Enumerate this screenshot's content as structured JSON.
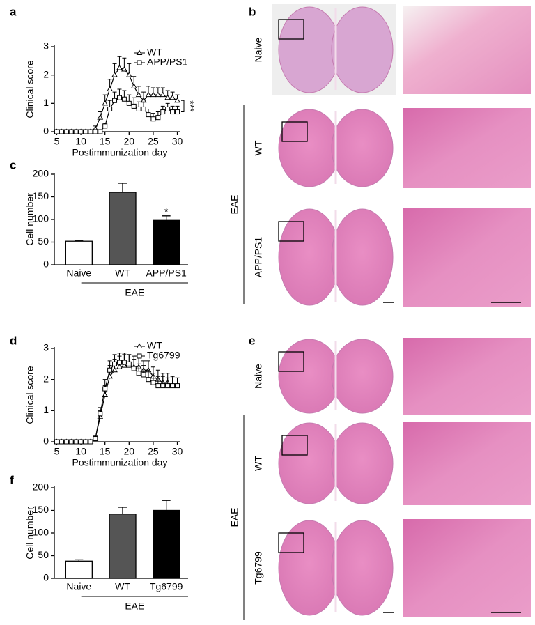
{
  "chart_data": [
    {
      "type": "line",
      "panel_label": "a",
      "ylabel": "Clinical score",
      "xlabel": "Postimmunization day",
      "x": [
        5,
        6,
        7,
        8,
        9,
        10,
        11,
        12,
        13,
        14,
        15,
        16,
        17,
        18,
        19,
        20,
        21,
        22,
        23,
        24,
        25,
        26,
        27,
        28,
        29,
        30
      ],
      "xlim": [
        4.5,
        30.5
      ],
      "xticks": [
        5,
        10,
        15,
        20,
        25,
        30
      ],
      "ylim": [
        0,
        3
      ],
      "yticks": [
        0,
        1,
        2,
        3
      ],
      "series": [
        {
          "name": "WT",
          "color": "#000000",
          "marker": "triangle",
          "values": [
            0,
            0,
            0,
            0,
            0,
            0,
            0,
            0,
            0.1,
            0.5,
            1.0,
            1.5,
            2.0,
            2.25,
            2.2,
            2.0,
            1.6,
            1.3,
            1.1,
            1.3,
            1.3,
            1.3,
            1.3,
            1.2,
            1.2,
            1.1
          ],
          "errors": [
            0,
            0,
            0,
            0,
            0,
            0,
            0,
            0,
            0.1,
            0.2,
            0.3,
            0.35,
            0.4,
            0.4,
            0.4,
            0.4,
            0.35,
            0.3,
            0.3,
            0.3,
            0.25,
            0.25,
            0.25,
            0.25,
            0.2,
            0.2
          ]
        },
        {
          "name": "APP/PS1",
          "color": "#000000",
          "marker": "square",
          "values": [
            0,
            0,
            0,
            0,
            0,
            0,
            0,
            0,
            0,
            0,
            0.2,
            0.8,
            1.1,
            1.2,
            1.15,
            1.0,
            0.9,
            0.8,
            0.8,
            0.6,
            0.45,
            0.5,
            0.7,
            0.8,
            0.7,
            0.7
          ],
          "errors": [
            0,
            0,
            0,
            0,
            0,
            0,
            0,
            0,
            0,
            0,
            0.1,
            0.3,
            0.3,
            0.3,
            0.3,
            0.3,
            0.3,
            0.25,
            0.25,
            0.2,
            0.2,
            0.2,
            0.2,
            0.2,
            0.2,
            0.2
          ]
        }
      ],
      "annotation": "***"
    },
    {
      "type": "bar",
      "panel_label": "c",
      "ylabel": "Cell number",
      "categories": [
        "Naive",
        "WT",
        "APP/PS1"
      ],
      "values": [
        52,
        160,
        98
      ],
      "errors": [
        2,
        20,
        10
      ],
      "colors": [
        "#ffffff",
        "#555555",
        "#000000"
      ],
      "ylim": [
        0,
        200
      ],
      "yticks": [
        0,
        50,
        100,
        150,
        200
      ],
      "group_label": "EAE",
      "annotation": "*"
    },
    {
      "type": "line",
      "panel_label": "d",
      "ylabel": "Clinical score",
      "xlabel": "Postimmunization day",
      "x": [
        5,
        6,
        7,
        8,
        9,
        10,
        11,
        12,
        13,
        14,
        15,
        16,
        17,
        18,
        19,
        20,
        21,
        22,
        23,
        24,
        25,
        26,
        27,
        28,
        29,
        30
      ],
      "xlim": [
        4.5,
        30.5
      ],
      "xticks": [
        5,
        10,
        15,
        20,
        25,
        30
      ],
      "ylim": [
        0,
        3
      ],
      "yticks": [
        0,
        1,
        2,
        3
      ],
      "series": [
        {
          "name": "WT",
          "color": "#000000",
          "marker": "triangle",
          "values": [
            0,
            0,
            0,
            0,
            0,
            0,
            0,
            0,
            0.1,
            0.8,
            1.5,
            2.1,
            2.3,
            2.4,
            2.45,
            2.45,
            2.4,
            2.4,
            2.3,
            2.3,
            2.1,
            2.0,
            1.9,
            1.9,
            1.8,
            1.8
          ],
          "errors": [
            0,
            0,
            0,
            0,
            0,
            0,
            0,
            0,
            0.1,
            0.2,
            0.3,
            0.35,
            0.35,
            0.35,
            0.35,
            0.35,
            0.35,
            0.35,
            0.3,
            0.3,
            0.3,
            0.3,
            0.3,
            0.3,
            0.3,
            0.25
          ]
        },
        {
          "name": "Tg6799",
          "color": "#000000",
          "marker": "square",
          "values": [
            0,
            0,
            0,
            0,
            0,
            0,
            0,
            0,
            0.1,
            0.9,
            1.7,
            2.3,
            2.5,
            2.55,
            2.55,
            2.5,
            2.35,
            2.2,
            2.15,
            2.0,
            1.9,
            1.8,
            1.8,
            1.8,
            1.8,
            1.8
          ],
          "errors": [
            0,
            0,
            0,
            0,
            0,
            0,
            0,
            0,
            0.1,
            0.2,
            0.3,
            0.3,
            0.3,
            0.3,
            0.3,
            0.3,
            0.3,
            0.3,
            0.3,
            0.3,
            0.3,
            0.3,
            0.3,
            0.25,
            0.25,
            0.25
          ]
        }
      ]
    },
    {
      "type": "bar",
      "panel_label": "f",
      "ylabel": "Cell number",
      "categories": [
        "Naive",
        "WT",
        "Tg6799"
      ],
      "values": [
        38,
        142,
        150
      ],
      "errors": [
        3,
        15,
        22
      ],
      "colors": [
        "#ffffff",
        "#555555",
        "#000000"
      ],
      "ylim": [
        0,
        200
      ],
      "yticks": [
        0,
        50,
        100,
        150,
        200
      ],
      "group_label": "EAE"
    }
  ],
  "panels": [
    {
      "panel_label": "b",
      "rows": [
        "Naive",
        "WT",
        "APP/PS1"
      ],
      "group_label": "EAE"
    },
    {
      "panel_label": "e",
      "rows": [
        "Naive",
        "WT",
        "Tg6799"
      ],
      "group_label": "EAE"
    }
  ]
}
